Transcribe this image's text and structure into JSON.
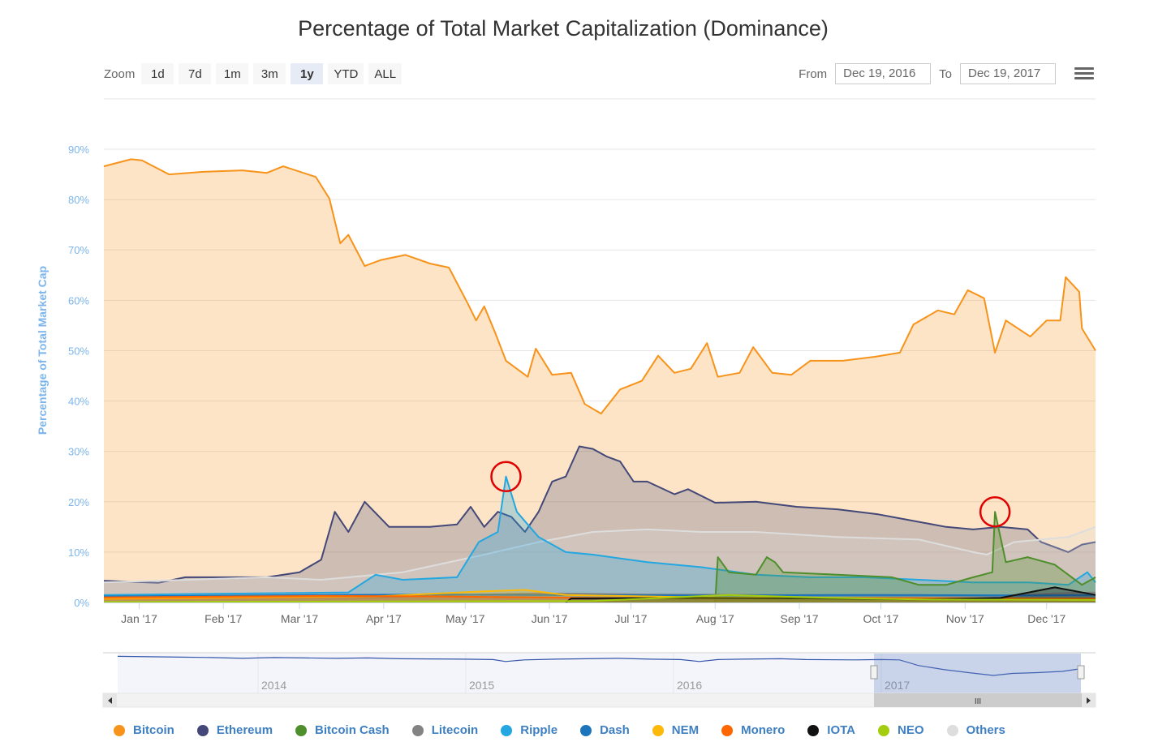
{
  "chart_data": {
    "type": "area",
    "title": "Percentage of Total Market Capitalization (Dominance)",
    "ylabel": "Percentage of Total Market Cap",
    "xlabel": "",
    "ylim": [
      0,
      90
    ],
    "xlim": [
      "2016-12-19",
      "2017-12-19"
    ],
    "y_ticks": [
      "0%",
      "10%",
      "20%",
      "30%",
      "40%",
      "50%",
      "60%",
      "70%",
      "80%",
      "90%"
    ],
    "x_ticks": [
      {
        "date": "2017-01-01",
        "label": "Jan '17"
      },
      {
        "date": "2017-02-01",
        "label": "Feb '17"
      },
      {
        "date": "2017-03-01",
        "label": "Mar '17"
      },
      {
        "date": "2017-04-01",
        "label": "Apr '17"
      },
      {
        "date": "2017-05-01",
        "label": "May '17"
      },
      {
        "date": "2017-06-01",
        "label": "Jun '17"
      },
      {
        "date": "2017-07-01",
        "label": "Jul '17"
      },
      {
        "date": "2017-08-01",
        "label": "Aug '17"
      },
      {
        "date": "2017-09-01",
        "label": "Sep '17"
      },
      {
        "date": "2017-10-01",
        "label": "Oct '17"
      },
      {
        "date": "2017-11-01",
        "label": "Nov '17"
      },
      {
        "date": "2017-12-01",
        "label": "Dec '17"
      }
    ],
    "grid": true,
    "legend_placement": "bottom",
    "x_unit": "days since 2016-12-19",
    "series": [
      {
        "name": "Bitcoin",
        "color": "#f7931a",
        "points": [
          [
            0,
            86.6
          ],
          [
            10,
            88
          ],
          [
            14,
            87.8
          ],
          [
            24,
            85
          ],
          [
            36,
            85.5
          ],
          [
            51,
            85.8
          ],
          [
            60,
            85.3
          ],
          [
            66,
            86.6
          ],
          [
            78,
            84.5
          ],
          [
            83,
            80.2
          ],
          [
            87,
            71.3
          ],
          [
            90,
            73
          ],
          [
            96,
            66.8
          ],
          [
            102,
            68
          ],
          [
            111,
            69
          ],
          [
            120,
            67.3
          ],
          [
            127,
            66.5
          ],
          [
            134,
            59.3
          ],
          [
            137,
            56
          ],
          [
            140,
            58.8
          ],
          [
            144,
            53.6
          ],
          [
            148,
            48
          ],
          [
            156,
            44.8
          ],
          [
            159,
            50.4
          ],
          [
            165,
            45.2
          ],
          [
            172,
            45.6
          ],
          [
            177,
            39.4
          ],
          [
            183,
            37.5
          ],
          [
            190,
            42.3
          ],
          [
            198,
            44
          ],
          [
            204,
            49
          ],
          [
            210,
            45.6
          ],
          [
            216,
            46.4
          ],
          [
            222,
            51.5
          ],
          [
            226,
            44.8
          ],
          [
            234,
            45.6
          ],
          [
            239,
            50.7
          ],
          [
            246,
            45.6
          ],
          [
            253,
            45.2
          ],
          [
            260,
            48
          ],
          [
            272,
            48
          ],
          [
            284,
            48.8
          ],
          [
            293,
            49.6
          ],
          [
            298,
            55.2
          ],
          [
            307,
            58
          ],
          [
            313,
            57.2
          ],
          [
            318,
            62
          ],
          [
            324,
            60.4
          ],
          [
            328,
            49.6
          ],
          [
            332,
            56
          ],
          [
            341,
            52.8
          ],
          [
            347,
            56
          ],
          [
            352,
            56
          ],
          [
            354,
            64.6
          ],
          [
            359,
            61.7
          ],
          [
            360,
            54.4
          ],
          [
            365,
            50
          ]
        ]
      },
      {
        "name": "Ethereum",
        "color": "#434878",
        "points": [
          [
            0,
            4.3
          ],
          [
            20,
            3.9
          ],
          [
            30,
            5
          ],
          [
            60,
            5
          ],
          [
            72,
            6
          ],
          [
            80,
            8.5
          ],
          [
            85,
            18
          ],
          [
            90,
            14
          ],
          [
            96,
            20
          ],
          [
            105,
            15
          ],
          [
            120,
            15
          ],
          [
            130,
            15.5
          ],
          [
            135,
            19
          ],
          [
            140,
            15
          ],
          [
            145,
            18
          ],
          [
            150,
            17
          ],
          [
            155,
            14
          ],
          [
            160,
            18
          ],
          [
            165,
            24
          ],
          [
            170,
            25
          ],
          [
            175,
            31
          ],
          [
            180,
            30.5
          ],
          [
            185,
            29
          ],
          [
            190,
            28
          ],
          [
            195,
            24
          ],
          [
            200,
            24
          ],
          [
            210,
            21.5
          ],
          [
            215,
            22.5
          ],
          [
            225,
            19.8
          ],
          [
            240,
            20
          ],
          [
            255,
            19
          ],
          [
            270,
            18.5
          ],
          [
            285,
            17.5
          ],
          [
            300,
            16
          ],
          [
            310,
            15
          ],
          [
            320,
            14.5
          ],
          [
            330,
            15
          ],
          [
            340,
            14.5
          ],
          [
            345,
            12
          ],
          [
            355,
            10
          ],
          [
            360,
            11.5
          ],
          [
            365,
            12
          ]
        ]
      },
      {
        "name": "Others",
        "color": "#dddddd",
        "points": [
          [
            0,
            4
          ],
          [
            60,
            5
          ],
          [
            80,
            4.5
          ],
          [
            110,
            6
          ],
          [
            140,
            9.5
          ],
          [
            160,
            12
          ],
          [
            180,
            14
          ],
          [
            200,
            14.5
          ],
          [
            220,
            14
          ],
          [
            240,
            14
          ],
          [
            270,
            13
          ],
          [
            300,
            12.5
          ],
          [
            320,
            10
          ],
          [
            325,
            9.5
          ],
          [
            335,
            12
          ],
          [
            355,
            13
          ],
          [
            365,
            15
          ]
        ]
      },
      {
        "name": "Ripple",
        "color": "#23a7e0",
        "points": [
          [
            0,
            1.5
          ],
          [
            90,
            2
          ],
          [
            100,
            5.5
          ],
          [
            110,
            4.5
          ],
          [
            130,
            5
          ],
          [
            138,
            12
          ],
          [
            145,
            14
          ],
          [
            148,
            25
          ],
          [
            152,
            18
          ],
          [
            160,
            13
          ],
          [
            170,
            10
          ],
          [
            180,
            9.5
          ],
          [
            200,
            8
          ],
          [
            220,
            7
          ],
          [
            240,
            5.5
          ],
          [
            260,
            5
          ],
          [
            280,
            5
          ],
          [
            300,
            4.5
          ],
          [
            320,
            4
          ],
          [
            340,
            4
          ],
          [
            355,
            3.5
          ],
          [
            362,
            6
          ],
          [
            365,
            4
          ]
        ]
      },
      {
        "name": "Bitcoin Cash",
        "color": "#4e8e2b",
        "points": [
          [
            225,
            0
          ],
          [
            226,
            9
          ],
          [
            230,
            6
          ],
          [
            240,
            5.5
          ],
          [
            244,
            9
          ],
          [
            247,
            8
          ],
          [
            250,
            6
          ],
          [
            270,
            5.5
          ],
          [
            290,
            5
          ],
          [
            300,
            3.5
          ],
          [
            310,
            3.5
          ],
          [
            320,
            5
          ],
          [
            327,
            6
          ],
          [
            328,
            18
          ],
          [
            332,
            8
          ],
          [
            340,
            9
          ],
          [
            350,
            7.5
          ],
          [
            360,
            3.5
          ],
          [
            365,
            5
          ]
        ]
      },
      {
        "name": "Litecoin",
        "color": "#838383",
        "points": [
          [
            0,
            1
          ],
          [
            100,
            1
          ],
          [
            130,
            1.5
          ],
          [
            160,
            1.8
          ],
          [
            200,
            1.6
          ],
          [
            250,
            1.5
          ],
          [
            300,
            1.5
          ],
          [
            330,
            1.3
          ],
          [
            350,
            1.8
          ],
          [
            365,
            2
          ]
        ]
      },
      {
        "name": "Dash",
        "color": "#1c75bc",
        "points": [
          [
            0,
            1.2
          ],
          [
            80,
            1.5
          ],
          [
            120,
            1.6
          ],
          [
            160,
            1.5
          ],
          [
            220,
            1.4
          ],
          [
            280,
            1.5
          ],
          [
            340,
            1.4
          ],
          [
            365,
            1.5
          ]
        ]
      },
      {
        "name": "NEM",
        "color": "#fcb908",
        "points": [
          [
            0,
            0.7
          ],
          [
            100,
            1.2
          ],
          [
            140,
            2.2
          ],
          [
            155,
            2.5
          ],
          [
            170,
            1.5
          ],
          [
            220,
            1
          ],
          [
            280,
            0.9
          ],
          [
            365,
            0.8
          ]
        ]
      },
      {
        "name": "Monero",
        "color": "#ff6600",
        "points": [
          [
            0,
            1
          ],
          [
            80,
            1.3
          ],
          [
            120,
            1.2
          ],
          [
            200,
            0.8
          ],
          [
            280,
            0.9
          ],
          [
            365,
            0.8
          ]
        ]
      },
      {
        "name": "IOTA",
        "color": "#111111",
        "points": [
          [
            170,
            0
          ],
          [
            172,
            0.8
          ],
          [
            220,
            0.9
          ],
          [
            260,
            0.8
          ],
          [
            300,
            0.6
          ],
          [
            330,
            0.9
          ],
          [
            350,
            3
          ],
          [
            365,
            1.5
          ]
        ]
      },
      {
        "name": "NEO",
        "color": "#a4cd0f",
        "points": [
          [
            0,
            0.1
          ],
          [
            180,
            0.3
          ],
          [
            230,
            1.5
          ],
          [
            260,
            1
          ],
          [
            300,
            0.6
          ],
          [
            365,
            0.5
          ]
        ]
      }
    ],
    "annotations": [
      {
        "type": "circle",
        "series": "Ripple",
        "day": 148,
        "value": 25,
        "color": "#e00000"
      },
      {
        "type": "circle",
        "series": "Bitcoin Cash",
        "day": 328,
        "value": 18,
        "color": "#e00000"
      }
    ]
  },
  "toolbar": {
    "zoom_label": "Zoom",
    "zoom_buttons": [
      "1d",
      "7d",
      "1m",
      "3m",
      "1y",
      "YTD",
      "ALL"
    ],
    "active_zoom": "1y",
    "from_label": "From",
    "from_value": "Dec 19, 2016",
    "to_label": "To",
    "to_value": "Dec 19, 2017"
  },
  "navigator": {
    "year_labels": [
      "2014",
      "2015",
      "2016",
      "2017"
    ],
    "series_name": "Bitcoin",
    "points": [
      [
        0,
        93
      ],
      [
        5,
        92
      ],
      [
        10,
        91
      ],
      [
        15,
        90
      ],
      [
        20,
        88
      ],
      [
        25,
        90
      ],
      [
        30,
        89
      ],
      [
        35,
        88
      ],
      [
        40,
        89
      ],
      [
        45,
        87
      ],
      [
        55,
        86
      ],
      [
        60,
        85
      ],
      [
        62,
        80
      ],
      [
        65,
        84
      ],
      [
        70,
        86
      ],
      [
        75,
        87
      ],
      [
        80,
        88
      ],
      [
        85,
        86
      ],
      [
        90,
        85
      ],
      [
        93,
        80
      ],
      [
        96,
        85
      ],
      [
        100,
        86
      ],
      [
        106,
        87
      ],
      [
        110,
        85
      ],
      [
        118,
        84
      ],
      [
        122,
        85
      ],
      [
        125,
        84
      ],
      [
        128,
        70
      ],
      [
        132,
        60
      ],
      [
        136,
        52
      ],
      [
        140,
        45
      ],
      [
        143,
        50
      ],
      [
        147,
        52
      ],
      [
        151,
        55
      ],
      [
        154,
        62
      ]
    ]
  }
}
